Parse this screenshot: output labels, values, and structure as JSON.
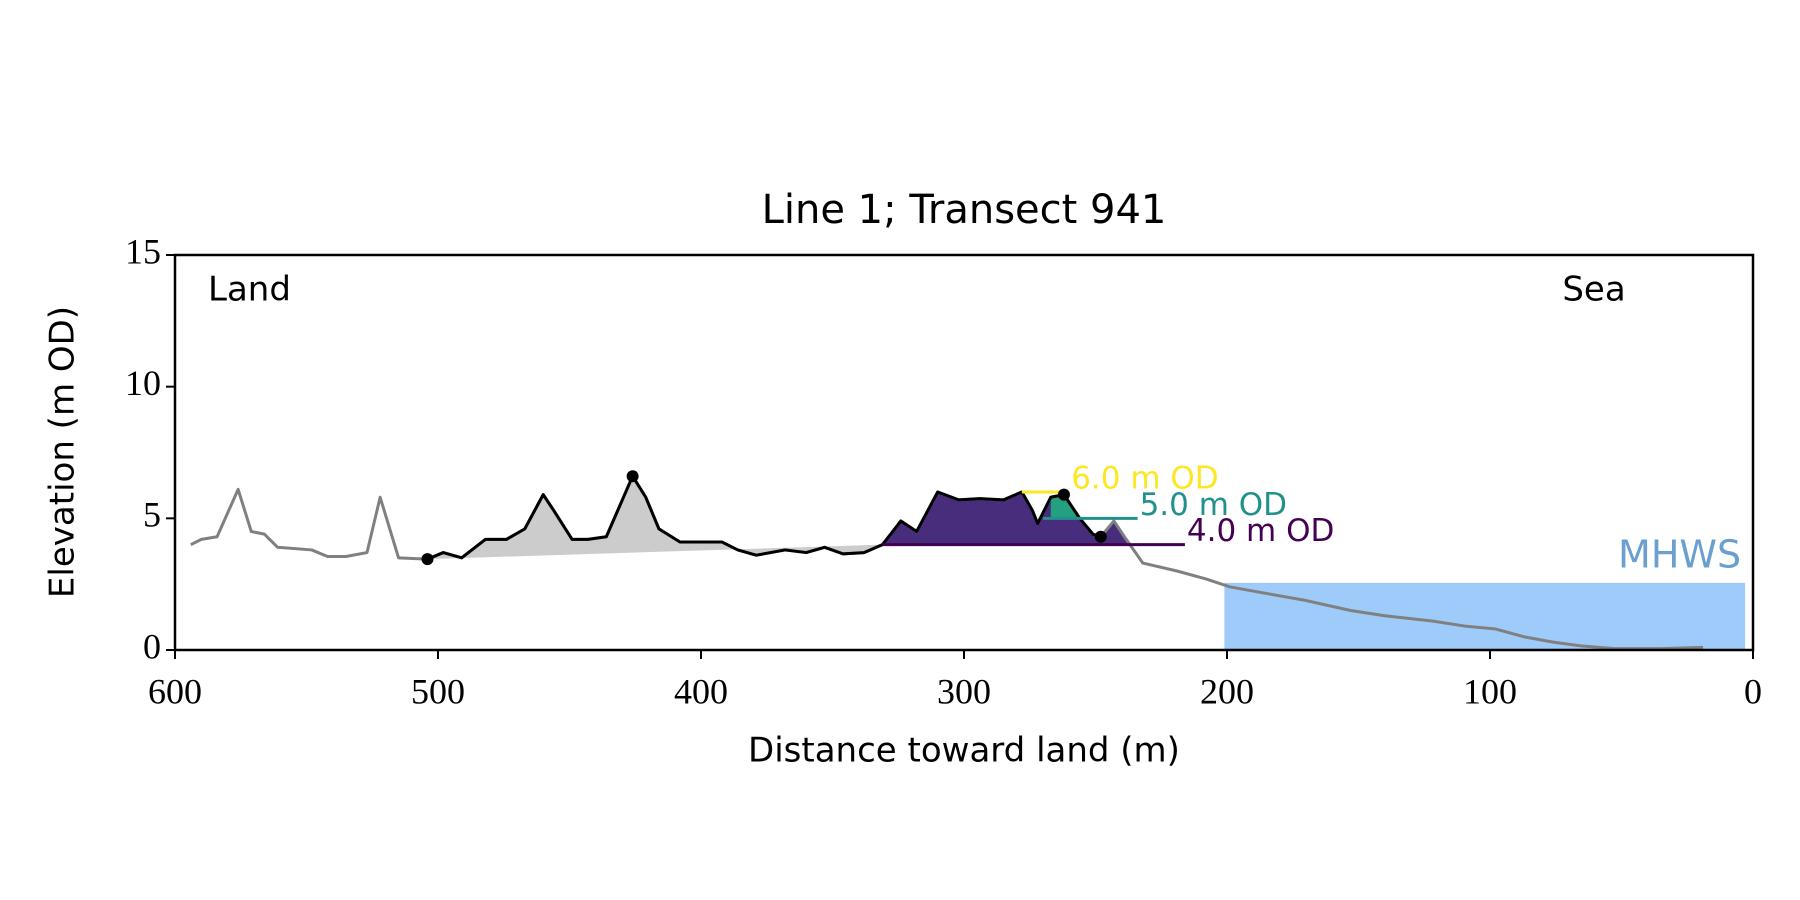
{
  "chart_data": {
    "type": "line",
    "title": "Line 1; Transect 941",
    "x_label": "Distance toward land (m)",
    "y_label": "Elevation (m OD)",
    "annotations": {
      "left": "Land",
      "right": "Sea"
    },
    "xlim": [
      600,
      0
    ],
    "ylim": [
      0,
      15
    ],
    "xticks": [
      600,
      500,
      400,
      300,
      200,
      100,
      0
    ],
    "yticks": [
      0,
      5,
      10,
      15
    ],
    "color": "#808080",
    "dune_color": "#000000",
    "dune_fill": "#cccccc",
    "x": [
      594,
      590,
      584,
      576,
      571,
      566,
      561,
      548,
      542,
      535,
      527,
      522,
      515,
      504,
      498,
      491,
      482,
      474,
      467,
      460,
      456,
      449,
      443,
      436,
      426,
      421,
      416,
      408,
      399,
      392,
      386,
      379,
      368,
      360,
      353,
      346,
      338,
      331,
      324,
      318,
      310,
      302,
      294,
      285,
      278,
      274,
      272,
      267,
      262,
      256,
      251,
      248,
      243,
      239,
      232,
      219,
      208,
      199,
      188,
      171,
      153,
      140,
      122,
      109,
      98,
      87,
      76,
      65,
      52,
      35,
      19
    ],
    "values": [
      4.0,
      4.2,
      4.3,
      6.1,
      4.5,
      4.4,
      3.9,
      3.8,
      3.55,
      3.55,
      3.7,
      5.8,
      3.5,
      3.45,
      3.7,
      3.5,
      4.2,
      4.2,
      4.6,
      5.9,
      5.3,
      4.2,
      4.2,
      4.3,
      6.6,
      5.8,
      4.6,
      4.1,
      4.1,
      4.1,
      3.8,
      3.6,
      3.8,
      3.7,
      3.9,
      3.65,
      3.7,
      4.0,
      4.9,
      4.5,
      6.0,
      5.7,
      5.75,
      5.7,
      6.0,
      5.3,
      4.8,
      5.8,
      5.9,
      5.0,
      4.4,
      4.3,
      4.9,
      4.3,
      3.3,
      3.0,
      2.7,
      2.4,
      2.2,
      1.9,
      1.5,
      1.3,
      1.1,
      0.9,
      0.8,
      0.5,
      0.3,
      0.15,
      0.05,
      0.05,
      0.1
    ],
    "markers": {
      "x": [
        504,
        426,
        262,
        248
      ],
      "y": [
        3.45,
        6.6,
        5.9,
        4.3
      ]
    },
    "levels": [
      {
        "value": 4.0,
        "label": "4.0 m OD",
        "color": "#440154",
        "fill": "#472d7b",
        "x_start": 331,
        "x_end": 216
      },
      {
        "value": 5.0,
        "label": "5.0 m OD",
        "color": "#21918c",
        "fill": "#22a07f",
        "x_start": 270,
        "x_end": 234
      },
      {
        "value": 6.0,
        "label": "6.0 m OD",
        "color": "#fde725",
        "fill": "#fde725",
        "x_start": 278,
        "x_end": 260
      }
    ],
    "mhws": {
      "label": "MHWS",
      "value": 2.55,
      "x_start": 201,
      "x_end": 3,
      "color": "#9ecbf9",
      "label_color": "#6a9fd0"
    }
  }
}
